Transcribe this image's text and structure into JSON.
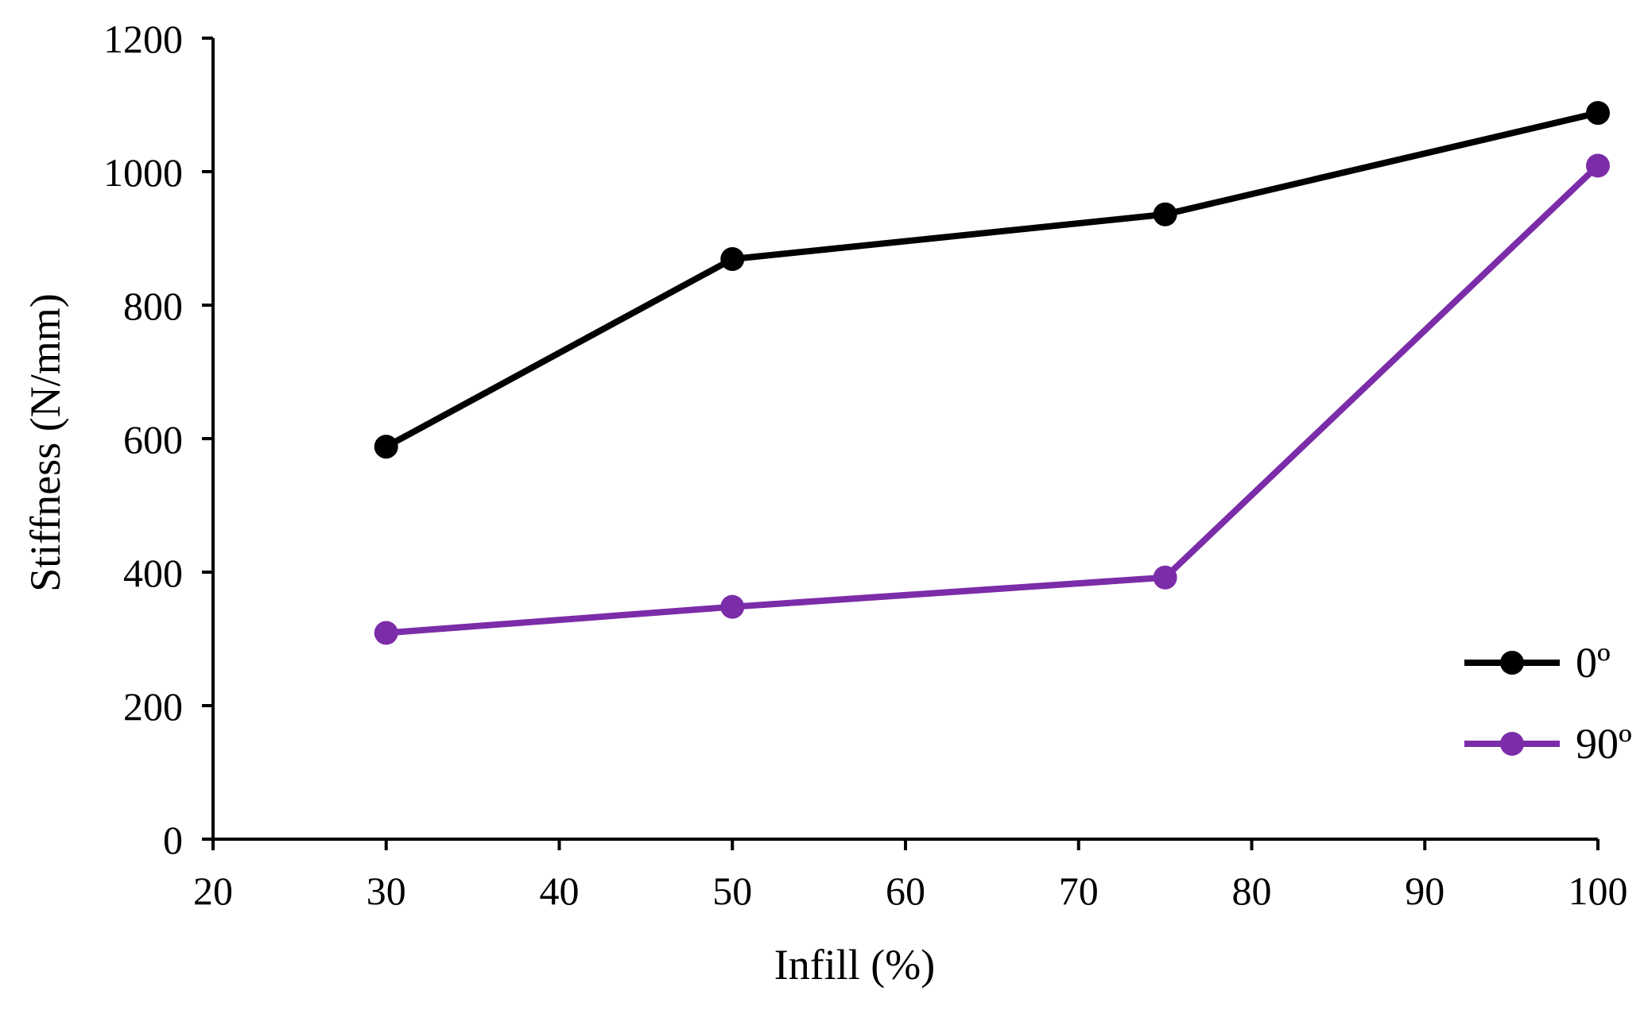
{
  "chart_data": {
    "type": "line",
    "title": "",
    "xlabel": "Infill (%)",
    "ylabel": "Stiffness (N/mm)",
    "xlim": [
      20,
      100
    ],
    "ylim": [
      0,
      1200
    ],
    "x_ticks": [
      20,
      30,
      40,
      50,
      60,
      70,
      80,
      90,
      100
    ],
    "y_ticks": [
      0,
      200,
      400,
      600,
      800,
      1000,
      1200
    ],
    "grid": false,
    "legend_position": "bottom-right",
    "series": [
      {
        "name": "0º",
        "color": "#000000",
        "x": [
          30,
          50,
          75,
          100
        ],
        "y": [
          588,
          869,
          936,
          1088
        ]
      },
      {
        "name": "90º",
        "color": "#7B2CA8",
        "x": [
          30,
          50,
          75,
          100
        ],
        "y": [
          309,
          348,
          392,
          1009
        ]
      }
    ]
  }
}
